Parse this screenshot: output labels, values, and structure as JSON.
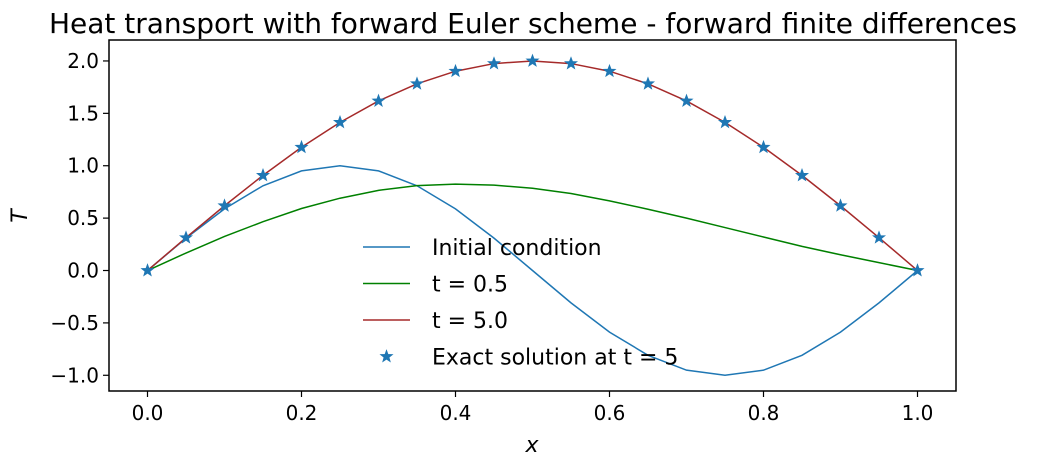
{
  "chart_data": {
    "type": "line",
    "title": "Heat transport with forward Euler scheme - forward finite differences",
    "xlabel": "x",
    "ylabel": "T",
    "xlim": [
      -0.05,
      1.05
    ],
    "ylim": [
      -1.15,
      2.2
    ],
    "xticks": [
      0.0,
      0.2,
      0.4,
      0.6,
      0.8,
      1.0
    ],
    "xtick_labels": [
      "0.0",
      "0.2",
      "0.4",
      "0.6",
      "0.8",
      "1.0"
    ],
    "yticks": [
      -1.0,
      -0.5,
      0.0,
      0.5,
      1.0,
      1.5,
      2.0
    ],
    "ytick_labels": [
      "−1.0",
      "−0.5",
      "0.0",
      "0.5",
      "1.0",
      "1.5",
      "2.0"
    ],
    "grid": false,
    "legend_position": "lower-center",
    "x": [
      0.0,
      0.05,
      0.1,
      0.15,
      0.2,
      0.25,
      0.3,
      0.35,
      0.4,
      0.45,
      0.5,
      0.55,
      0.6,
      0.65,
      0.7,
      0.75,
      0.8,
      0.85,
      0.9,
      0.95,
      1.0
    ],
    "series": [
      {
        "name": "Initial condition",
        "style": "line",
        "color": "#1f77b4",
        "values": [
          0.0,
          0.309,
          0.588,
          0.809,
          0.951,
          1.0,
          0.951,
          0.809,
          0.588,
          0.309,
          0.0,
          -0.309,
          -0.588,
          -0.809,
          -0.951,
          -1.0,
          -0.951,
          -0.809,
          -0.588,
          -0.309,
          0.0
        ]
      },
      {
        "name": "t = 0.5",
        "style": "line",
        "color": "#008000",
        "values": [
          0.0,
          0.167,
          0.325,
          0.466,
          0.592,
          0.69,
          0.765,
          0.81,
          0.825,
          0.815,
          0.785,
          0.735,
          0.665,
          0.585,
          0.5,
          0.41,
          0.32,
          0.23,
          0.15,
          0.075,
          0.0
        ]
      },
      {
        "name": "t = 5.0",
        "style": "line",
        "color": "#a52a2a",
        "values": [
          0.0,
          0.313,
          0.618,
          0.908,
          1.176,
          1.414,
          1.618,
          1.782,
          1.902,
          1.975,
          2.0,
          1.975,
          1.902,
          1.782,
          1.618,
          1.414,
          1.176,
          0.908,
          0.618,
          0.313,
          0.0
        ]
      },
      {
        "name": "Exact solution at t = 5",
        "style": "markers",
        "marker": "star",
        "color": "#1f77b4",
        "values": [
          0.0,
          0.313,
          0.618,
          0.908,
          1.176,
          1.414,
          1.618,
          1.782,
          1.902,
          1.975,
          2.0,
          1.975,
          1.902,
          1.782,
          1.618,
          1.414,
          1.176,
          0.908,
          0.618,
          0.313,
          0.0
        ]
      }
    ]
  }
}
